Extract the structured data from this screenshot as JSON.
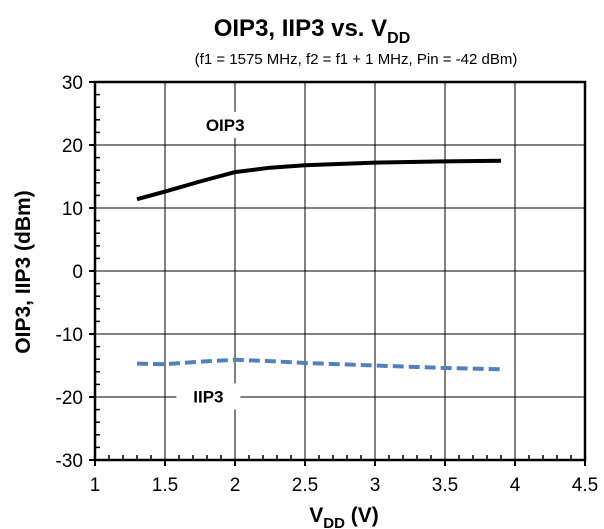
{
  "chart_data": {
    "type": "line",
    "title": "OIP3, IIP3 vs. V",
    "title_subscript": "DD",
    "subtitle": "(f1 = 1575 MHz, f2 = f1 + 1 MHz, Pin = -42 dBm)",
    "xlabel": "V",
    "xlabel_subscript": "DD",
    "xlabel_suffix": " (V)",
    "ylabel": "OIP3, IIP3 (dBm)",
    "xlim": [
      1,
      4.5
    ],
    "ylim": [
      -30,
      30
    ],
    "x_ticks": [
      1,
      1.5,
      2,
      2.5,
      3,
      3.5,
      4,
      4.5
    ],
    "x_tick_labels": [
      "1",
      "1.5",
      "2",
      "2.5",
      "3",
      "3.5",
      "4",
      "4.5"
    ],
    "y_ticks": [
      -30,
      -20,
      -10,
      0,
      10,
      20,
      30
    ],
    "y_tick_labels": [
      "-30",
      "-20",
      "-10",
      "0",
      "10",
      "20",
      "30"
    ],
    "grid": true,
    "legend": "none",
    "series": [
      {
        "name": "OIP3",
        "color": "#000000",
        "dash": "solid",
        "x": [
          1.3,
          1.5,
          1.75,
          2.0,
          2.25,
          2.5,
          3.0,
          3.5,
          3.9
        ],
        "y": [
          11.4,
          12.6,
          14.2,
          15.7,
          16.4,
          16.8,
          17.2,
          17.4,
          17.5
        ]
      },
      {
        "name": "IIP3",
        "color": "#4f81bd",
        "dash": "dashed",
        "x": [
          1.3,
          1.5,
          1.75,
          2.0,
          2.25,
          2.5,
          3.0,
          3.5,
          3.9
        ],
        "y": [
          -14.7,
          -14.8,
          -14.4,
          -14.1,
          -14.3,
          -14.6,
          -15.0,
          -15.4,
          -15.6
        ]
      }
    ],
    "annotations": [
      {
        "text": "OIP3",
        "x": 1.93,
        "y": 23.2
      },
      {
        "text": "IIP3",
        "x": 1.81,
        "y": -19.9
      }
    ]
  }
}
